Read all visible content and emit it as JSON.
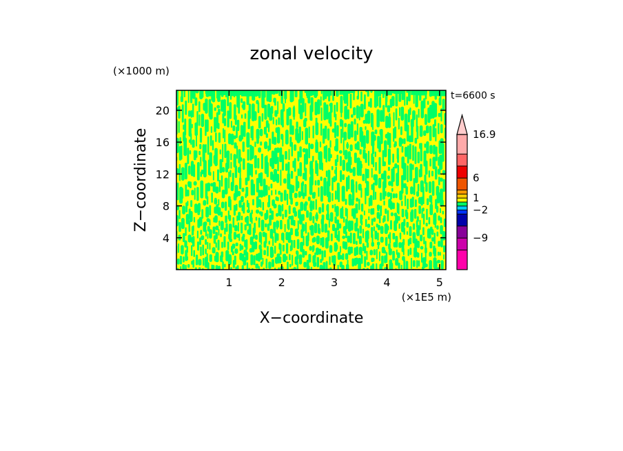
{
  "chart_data": {
    "type": "heatmap",
    "title": "zonal velocity",
    "xlabel": "X−coordinate",
    "ylabel": "Z−coordinate",
    "x_unit": "(×1E5 m)",
    "y_unit": "(×1000 m)",
    "time_label": "t=6600 s",
    "xlim": [
      0,
      5.12
    ],
    "ylim": [
      0,
      22.5
    ],
    "x_ticks": [
      1,
      2,
      3,
      4,
      5
    ],
    "y_ticks": [
      4,
      8,
      12,
      16,
      20
    ],
    "dominant_colors": [
      "#ffff00",
      "#00ff66"
    ],
    "colorbar": {
      "levels": [
        -16.9,
        -12,
        -9,
        -6,
        -3,
        -2,
        -1,
        0,
        1,
        2,
        3,
        6,
        9,
        12,
        16.9
      ],
      "labels": [
        "16.9",
        "6",
        "1",
        "−2",
        "−9"
      ],
      "label_values": [
        16.9,
        6,
        1,
        -2,
        -9
      ],
      "colors": [
        "#ff00aa",
        "#cc00aa",
        "#880099",
        "#0000aa",
        "#0033ff",
        "#00ccff",
        "#00ff66",
        "#ffff00",
        "#ffcc00",
        "#ff9900",
        "#ee5500",
        "#ee0000",
        "#ff6666",
        "#ffaaaa",
        "#ffcccc"
      ],
      "extend_max": true
    }
  }
}
